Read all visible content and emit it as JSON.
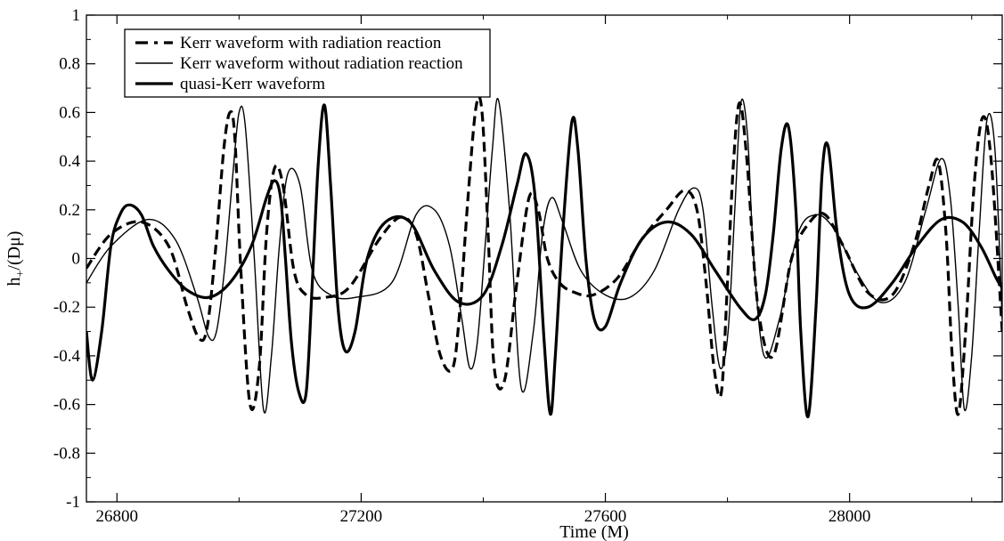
{
  "chart_data": {
    "type": "line",
    "xlabel": "Time (M)",
    "ylabel": "h",
    "ylabel_sub": "+",
    "ylabel_rest": "/(Dμ)",
    "xlim": [
      26750,
      28250
    ],
    "ylim": [
      -1,
      1
    ],
    "xticks": [
      26800,
      27200,
      27600,
      28000
    ],
    "xtick_labels": [
      "26800",
      "27200",
      "27600",
      "28000"
    ],
    "yticks": [
      -1,
      -0.8,
      -0.6,
      -0.4,
      -0.2,
      0,
      0.2,
      0.4,
      0.6,
      0.8,
      1
    ],
    "ytick_labels": [
      "-1",
      "-0.8",
      "-0.6",
      "-0.4",
      "-0.2",
      "0",
      "0.2",
      "0.4",
      "0.6",
      "0.8",
      "1"
    ],
    "grid": false,
    "legend_position": "top-left",
    "series": [
      {
        "name": "Kerr waveform with radiation reaction",
        "style": "dashed-thick",
        "color": "#000000",
        "x": [
          26750,
          26790,
          26840,
          26885,
          26915,
          26935,
          26948,
          26962,
          26975,
          26985,
          26993,
          27003,
          27018,
          27033,
          27045,
          27058,
          27072,
          27090,
          27110,
          27140,
          27180,
          27230,
          27265,
          27290,
          27310,
          27330,
          27350,
          27362,
          27375,
          27388,
          27398,
          27408,
          27418,
          27435,
          27455,
          27475,
          27490,
          27505,
          27525,
          27550,
          27580,
          27620,
          27660,
          27700,
          27730,
          27750,
          27765,
          27778,
          27790,
          27800,
          27810,
          27820,
          27832,
          27850,
          27875,
          27905,
          27935,
          27960,
          27990,
          28030,
          28070,
          28105,
          28130,
          28145,
          28158,
          28168,
          28178,
          28190,
          28204,
          28218,
          28232,
          28250
        ],
        "y": [
          -0.04,
          0.1,
          0.15,
          0.05,
          -0.2,
          -0.33,
          -0.28,
          0.05,
          0.45,
          0.6,
          0.5,
          -0.05,
          -0.6,
          -0.45,
          0.1,
          0.37,
          0.3,
          -0.05,
          -0.15,
          -0.16,
          -0.12,
          0.08,
          0.17,
          0.1,
          -0.15,
          -0.4,
          -0.45,
          -0.2,
          0.25,
          0.62,
          0.6,
          0.1,
          -0.45,
          -0.5,
          -0.1,
          0.25,
          0.2,
          0.0,
          -0.1,
          -0.14,
          -0.15,
          -0.08,
          0.08,
          0.2,
          0.28,
          0.2,
          -0.1,
          -0.45,
          -0.55,
          -0.1,
          0.4,
          0.64,
          0.4,
          -0.2,
          -0.4,
          0.0,
          0.15,
          0.18,
          0.05,
          -0.14,
          -0.15,
          0.05,
          0.3,
          0.4,
          0.1,
          -0.4,
          -0.64,
          -0.3,
          0.3,
          0.58,
          0.4,
          -0.3
        ]
      },
      {
        "name": "Kerr waveform without radiation reaction",
        "style": "solid-thin",
        "color": "#000000",
        "x": [
          26750,
          26790,
          26850,
          26895,
          26930,
          26950,
          26963,
          26976,
          26990,
          27000,
          27010,
          27025,
          27040,
          27053,
          27066,
          27080,
          27100,
          27120,
          27150,
          27190,
          27250,
          27290,
          27320,
          27345,
          27365,
          27378,
          27390,
          27403,
          27415,
          27425,
          27443,
          27462,
          27482,
          27497,
          27512,
          27530,
          27560,
          27600,
          27640,
          27680,
          27720,
          27745,
          27760,
          27775,
          27788,
          27801,
          27812,
          27822,
          27833,
          27843,
          27860,
          27885,
          27915,
          27945,
          27975,
          28010,
          28050,
          28090,
          28125,
          28150,
          28165,
          28178,
          28188,
          28200,
          28212,
          28225,
          28238,
          28250
        ],
        "y": [
          -0.1,
          0.05,
          0.16,
          0.08,
          -0.15,
          -0.32,
          -0.3,
          -0.05,
          0.35,
          0.6,
          0.55,
          0.0,
          -0.62,
          -0.4,
          0.05,
          0.35,
          0.3,
          -0.05,
          -0.15,
          -0.16,
          -0.1,
          0.18,
          0.2,
          0.05,
          -0.25,
          -0.45,
          -0.35,
          0.05,
          0.45,
          0.65,
          0.2,
          -0.53,
          -0.3,
          0.1,
          0.25,
          0.15,
          -0.05,
          -0.15,
          -0.16,
          -0.05,
          0.2,
          0.29,
          0.2,
          -0.2,
          -0.45,
          -0.3,
          0.2,
          0.64,
          0.5,
          0.0,
          -0.4,
          -0.25,
          0.1,
          0.18,
          0.12,
          -0.05,
          -0.18,
          -0.1,
          0.2,
          0.41,
          0.25,
          -0.2,
          -0.62,
          -0.4,
          0.1,
          0.57,
          0.45,
          -0.25
        ]
      },
      {
        "name": "quasi-Kerr waveform",
        "style": "solid-thick",
        "color": "#000000",
        "x": [
          26750,
          26760,
          26775,
          26790,
          26805,
          26820,
          26840,
          26860,
          26885,
          26915,
          26950,
          26985,
          27020,
          27045,
          27058,
          27068,
          27076,
          27086,
          27098,
          27110,
          27120,
          27130,
          27140,
          27150,
          27162,
          27174,
          27190,
          27210,
          27240,
          27280,
          27320,
          27360,
          27400,
          27430,
          27455,
          27470,
          27485,
          27500,
          27510,
          27518,
          27530,
          27545,
          27555,
          27568,
          27582,
          27600,
          27625,
          27660,
          27700,
          27740,
          27780,
          27820,
          27845,
          27862,
          27875,
          27888,
          27900,
          27912,
          27920,
          27932,
          27945,
          27955,
          27965,
          27980,
          28000,
          28030,
          28070,
          28110,
          28150,
          28185,
          28215,
          28240,
          28250
        ],
        "y": [
          -0.3,
          -0.5,
          -0.3,
          0.05,
          0.18,
          0.22,
          0.18,
          0.05,
          -0.05,
          -0.13,
          -0.16,
          -0.1,
          0.05,
          0.25,
          0.32,
          0.25,
          0.0,
          -0.35,
          -0.55,
          -0.55,
          -0.1,
          0.4,
          0.63,
          0.3,
          -0.2,
          -0.38,
          -0.3,
          0.0,
          0.15,
          0.15,
          -0.05,
          -0.18,
          -0.15,
          0.05,
          0.3,
          0.43,
          0.25,
          -0.35,
          -0.64,
          -0.4,
          0.1,
          0.56,
          0.45,
          0.0,
          -0.25,
          -0.28,
          -0.1,
          0.08,
          0.15,
          0.1,
          -0.05,
          -0.2,
          -0.25,
          -0.15,
          0.1,
          0.45,
          0.54,
          0.2,
          -0.3,
          -0.65,
          -0.2,
          0.35,
          0.46,
          0.1,
          -0.15,
          -0.2,
          -0.1,
          0.05,
          0.16,
          0.15,
          0.05,
          -0.08,
          -0.12
        ]
      }
    ]
  }
}
